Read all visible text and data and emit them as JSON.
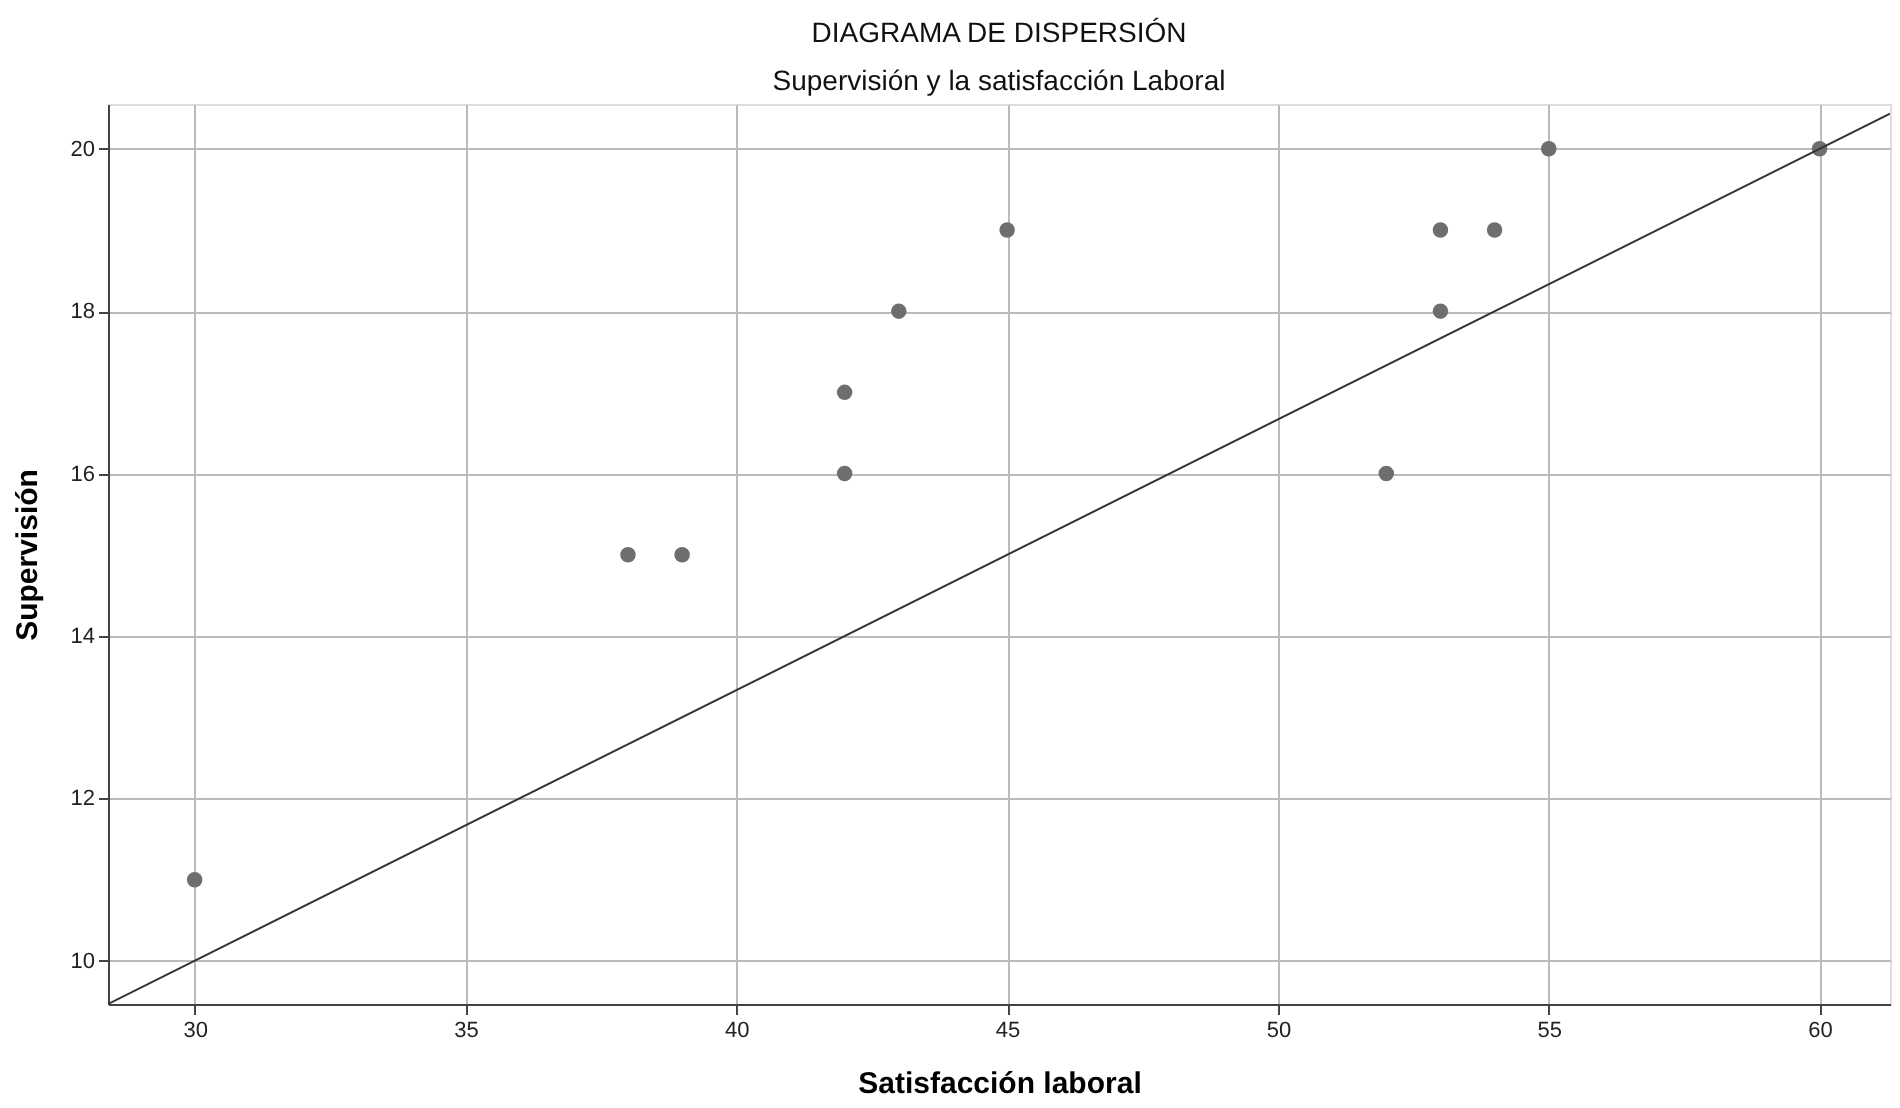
{
  "chart_data": {
    "type": "scatter",
    "title": "DIAGRAMA DE DISPERSIÓN",
    "subtitle": "Supervisión y la satisfacción Laboral",
    "xlabel": "Satisfacción laboral",
    "ylabel": "Supervisión",
    "series": [
      {
        "color": "#6e6e6e",
        "marker": "circle",
        "x": [
          30,
          38,
          39,
          42,
          42,
          43,
          45,
          52,
          53,
          53,
          54,
          55,
          60
        ],
        "values": [
          11,
          15,
          15,
          17,
          16,
          18,
          19,
          16,
          19,
          18,
          19,
          20,
          20
        ]
      },
      {
        "type": "line",
        "color": "#333333",
        "x": [
          28.4,
          61.3
        ],
        "values": [
          9.47,
          20.43
        ]
      }
    ],
    "xlim": [
      28.4,
      61.3
    ],
    "ylim": [
      9.47,
      20.55
    ],
    "xticks": [
      30,
      35,
      40,
      45,
      50,
      55,
      60
    ],
    "yticks": [
      10,
      12,
      14,
      16,
      18,
      20
    ],
    "grid": true,
    "line_style": "solid"
  }
}
